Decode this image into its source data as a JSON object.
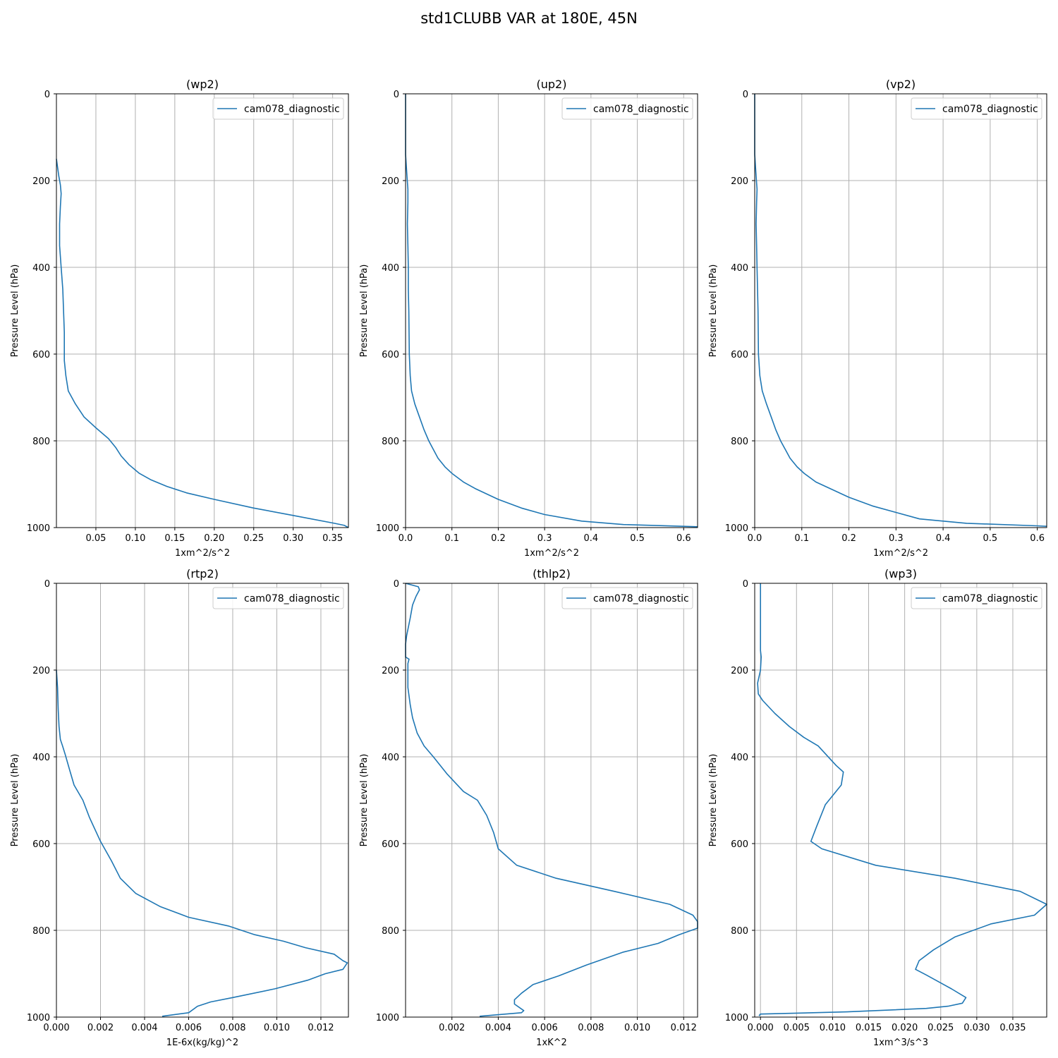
{
  "suptitle": "std1CLUBB VAR at 180E, 45N",
  "style": {
    "line_color": "#1f77b4",
    "grid_color": "#b0b0b0"
  },
  "chart_data": [
    {
      "type": "line",
      "title": "(wp2)",
      "xlabel": "1xm^2/s^2",
      "ylabel": "Pressure Level (hPa)",
      "xlim": [
        0.0,
        0.37
      ],
      "ylim": [
        1000,
        0
      ],
      "y_inverted": true,
      "grid": true,
      "legend": "top-right",
      "xticks": [
        0.05,
        0.1,
        0.15,
        0.2,
        0.25,
        0.3,
        0.35
      ],
      "xticklabels": [
        "0.05",
        "0.10",
        "0.15",
        "0.20",
        "0.25",
        "0.30",
        "0.35"
      ],
      "yticks": [
        0,
        200,
        400,
        600,
        800,
        1000
      ],
      "series": [
        {
          "name": "cam078_diagnostic",
          "x": [
            0.0,
            0.003,
            0.005,
            0.006,
            0.005,
            0.004,
            0.004,
            0.006,
            0.008,
            0.009,
            0.01,
            0.01,
            0.012,
            0.015,
            0.024,
            0.035,
            0.05,
            0.066,
            0.075,
            0.082,
            0.092,
            0.105,
            0.12,
            0.14,
            0.165,
            0.2,
            0.25,
            0.3,
            0.352,
            0.365,
            0.37
          ],
          "y": [
            150,
            190,
            210,
            230,
            260,
            300,
            350,
            400,
            450,
            500,
            550,
            615,
            650,
            685,
            715,
            745,
            770,
            795,
            815,
            835,
            855,
            875,
            890,
            905,
            920,
            935,
            955,
            972,
            990,
            995,
            1000
          ]
        }
      ]
    },
    {
      "type": "line",
      "title": "(up2)",
      "xlabel": "1xm^2/s^2",
      "ylabel": "Pressure Level (hPa)",
      "xlim": [
        0.0,
        0.63
      ],
      "ylim": [
        1000,
        0
      ],
      "y_inverted": true,
      "grid": true,
      "legend": "top-right",
      "xticks": [
        0.0,
        0.1,
        0.2,
        0.3,
        0.4,
        0.5,
        0.6
      ],
      "xticklabels": [
        "0.0",
        "0.1",
        "0.2",
        "0.3",
        "0.4",
        "0.5",
        "0.6"
      ],
      "yticks": [
        0,
        200,
        400,
        600,
        800,
        1000
      ],
      "series": [
        {
          "name": "cam078_diagnostic",
          "x": [
            0.0,
            0.0,
            0.003,
            0.005,
            0.005,
            0.004,
            0.005,
            0.006,
            0.006,
            0.007,
            0.008,
            0.01,
            0.013,
            0.02,
            0.03,
            0.04,
            0.05,
            0.06,
            0.07,
            0.085,
            0.1,
            0.125,
            0.15,
            0.2,
            0.25,
            0.3,
            0.38,
            0.47,
            0.6,
            0.63
          ],
          "y": [
            0,
            140,
            190,
            220,
            250,
            300,
            350,
            400,
            450,
            500,
            600,
            650,
            685,
            715,
            745,
            775,
            800,
            820,
            840,
            860,
            875,
            895,
            910,
            935,
            955,
            970,
            985,
            993,
            997,
            998
          ]
        }
      ]
    },
    {
      "type": "line",
      "title": "(vp2)",
      "xlabel": "1xm^2/s^2",
      "ylabel": "Pressure Level (hPa)",
      "xlim": [
        0.0,
        0.62
      ],
      "ylim": [
        1000,
        0
      ],
      "y_inverted": true,
      "grid": true,
      "legend": "top-right",
      "xticks": [
        0.0,
        0.1,
        0.2,
        0.3,
        0.4,
        0.5,
        0.6
      ],
      "xticklabels": [
        "0.0",
        "0.1",
        "0.2",
        "0.3",
        "0.4",
        "0.5",
        "0.6"
      ],
      "yticks": [
        0,
        200,
        400,
        600,
        800,
        1000
      ],
      "series": [
        {
          "name": "cam078_diagnostic",
          "x": [
            0.0,
            0.0,
            0.003,
            0.005,
            0.004,
            0.003,
            0.004,
            0.005,
            0.006,
            0.007,
            0.008,
            0.011,
            0.016,
            0.025,
            0.035,
            0.045,
            0.055,
            0.065,
            0.075,
            0.09,
            0.105,
            0.13,
            0.16,
            0.2,
            0.25,
            0.3,
            0.35,
            0.45,
            0.6,
            0.62
          ],
          "y": [
            0,
            140,
            190,
            220,
            250,
            300,
            350,
            400,
            450,
            500,
            600,
            650,
            685,
            715,
            745,
            775,
            800,
            820,
            840,
            860,
            875,
            895,
            910,
            930,
            950,
            965,
            980,
            990,
            996,
            997
          ]
        }
      ]
    },
    {
      "type": "line",
      "title": "(rtp2)",
      "xlabel": "1E-6x(kg/kg)^2",
      "ylabel": "Pressure Level (hPa)",
      "xlim": [
        0.0,
        0.01325
      ],
      "ylim": [
        1000,
        0
      ],
      "y_inverted": true,
      "grid": true,
      "legend": "top-right",
      "xticks": [
        0.0,
        0.002,
        0.004,
        0.006,
        0.008,
        0.01,
        0.012
      ],
      "xticklabels": [
        "0.000",
        "0.002",
        "0.004",
        "0.006",
        "0.008",
        "0.010",
        "0.012"
      ],
      "yticks": [
        0,
        200,
        400,
        600,
        800,
        1000
      ],
      "series": [
        {
          "name": "cam078_diagnostic",
          "x": [
            0.0,
            5e-05,
            8e-05,
            0.00012,
            0.00018,
            0.00028,
            0.0004,
            0.0006,
            0.0008,
            0.0012,
            0.0015,
            0.002,
            0.0025,
            0.0029,
            0.0036,
            0.0047,
            0.006,
            0.0078,
            0.009,
            0.0103,
            0.0113,
            0.0126,
            0.013,
            0.0132,
            0.013,
            0.0122,
            0.0114,
            0.0099,
            0.008,
            0.007,
            0.0064,
            0.006,
            0.0048
          ],
          "y": [
            200,
            240,
            290,
            330,
            360,
            375,
            395,
            430,
            465,
            500,
            540,
            595,
            640,
            680,
            715,
            745,
            770,
            790,
            810,
            825,
            840,
            855,
            870,
            875,
            890,
            900,
            915,
            935,
            955,
            965,
            975,
            990,
            998
          ]
        }
      ]
    },
    {
      "type": "line",
      "title": "(thlp2)",
      "xlabel": "1xK^2",
      "ylabel": "Pressure Level (hPa)",
      "xlim": [
        0.0,
        0.0126
      ],
      "ylim": [
        1000,
        0
      ],
      "y_inverted": true,
      "grid": true,
      "legend": "top-right",
      "xticks": [
        0.002,
        0.004,
        0.006,
        0.008,
        0.01,
        0.012
      ],
      "xticklabels": [
        "0.002",
        "0.004",
        "0.006",
        "0.008",
        "0.010",
        "0.012"
      ],
      "yticks": [
        0,
        200,
        400,
        600,
        800,
        1000
      ],
      "series": [
        {
          "name": "cam078_diagnostic",
          "x": [
            0.0,
            0.00055,
            0.0006,
            0.00045,
            0.0003,
            0.0002,
            5e-05,
            0.0,
            0.0,
            0.00015,
            0.0001,
            0.0001,
            0.0002,
            0.0003,
            0.0005,
            0.0008,
            0.0012,
            0.0018,
            0.0025,
            0.0031,
            0.0035,
            0.0038,
            0.004,
            0.0048,
            0.0065,
            0.009,
            0.0114,
            0.0124,
            0.0126,
            0.0126,
            0.0118,
            0.0109,
            0.0094,
            0.0078,
            0.0066,
            0.0055,
            0.005,
            0.0047,
            0.0047,
            0.0051,
            0.005,
            0.0032
          ],
          "y": [
            0,
            8,
            15,
            30,
            50,
            80,
            120,
            140,
            170,
            175,
            185,
            240,
            280,
            310,
            345,
            375,
            400,
            440,
            480,
            500,
            535,
            575,
            612,
            650,
            680,
            710,
            740,
            765,
            780,
            795,
            810,
            830,
            850,
            880,
            905,
            925,
            945,
            960,
            970,
            985,
            990,
            998
          ]
        }
      ]
    },
    {
      "type": "line",
      "title": "(wp3)",
      "xlabel": "1xm^3/s^3",
      "ylabel": "Pressure Level (hPa)",
      "xlim": [
        -0.0008,
        0.0397
      ],
      "ylim": [
        1000,
        0
      ],
      "y_inverted": true,
      "grid": true,
      "legend": "top-right",
      "xticks": [
        0.0,
        0.005,
        0.01,
        0.015,
        0.02,
        0.025,
        0.03,
        0.035
      ],
      "xticklabels": [
        "0.000",
        "0.005",
        "0.010",
        "0.015",
        "0.020",
        "0.025",
        "0.030",
        "0.035"
      ],
      "yticks": [
        0,
        200,
        400,
        600,
        800,
        1000
      ],
      "series": [
        {
          "name": "cam078_diagnostic",
          "x": [
            0.0,
            0.0,
            0.0,
            0.0001,
            0.0,
            -0.0004,
            -0.0003,
            0.0003,
            0.002,
            0.004,
            0.006,
            0.008,
            0.0105,
            0.0115,
            0.0112,
            0.009,
            0.0078,
            0.007,
            0.0085,
            0.016,
            0.027,
            0.036,
            0.0397,
            0.038,
            0.032,
            0.027,
            0.024,
            0.022,
            0.0215,
            0.023,
            0.0265,
            0.0285,
            0.028,
            0.026,
            0.023,
            0.012,
            0.0,
            -0.0002
          ],
          "y": [
            0,
            100,
            155,
            170,
            200,
            230,
            255,
            270,
            300,
            330,
            355,
            375,
            420,
            435,
            465,
            510,
            560,
            595,
            612,
            650,
            680,
            710,
            740,
            765,
            785,
            815,
            845,
            870,
            890,
            903,
            935,
            955,
            968,
            975,
            980,
            988,
            993,
            997
          ]
        }
      ]
    }
  ]
}
